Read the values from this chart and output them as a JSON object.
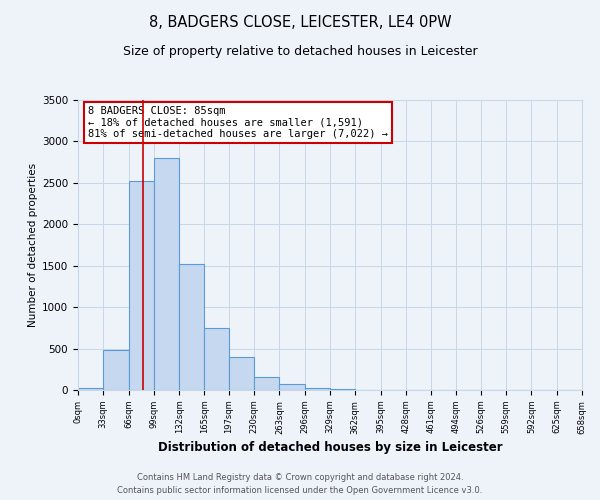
{
  "title": "8, BADGERS CLOSE, LEICESTER, LE4 0PW",
  "subtitle": "Size of property relative to detached houses in Leicester",
  "xlabel": "Distribution of detached houses by size in Leicester",
  "ylabel": "Number of detached properties",
  "bar_color": "#c5d8f0",
  "bar_edge_color": "#5b9bd5",
  "grid_color": "#c8d8e8",
  "background_color": "#eef3fa",
  "vline_value": 85,
  "vline_color": "#cc0000",
  "annotation_text": "8 BADGERS CLOSE: 85sqm\n← 18% of detached houses are smaller (1,591)\n81% of semi-detached houses are larger (7,022) →",
  "annotation_box_color": "#ffffff",
  "annotation_box_edge": "#cc0000",
  "bin_edges": [
    0,
    33,
    66,
    99,
    132,
    165,
    197,
    230,
    263,
    296,
    329,
    362,
    395,
    428,
    461,
    494,
    526,
    559,
    592,
    625,
    658
  ],
  "bar_heights": [
    20,
    480,
    2520,
    2800,
    1520,
    750,
    400,
    155,
    70,
    20,
    10,
    5,
    5,
    0,
    0,
    0,
    0,
    0,
    0,
    0
  ],
  "tick_labels": [
    "0sqm",
    "33sqm",
    "66sqm",
    "99sqm",
    "132sqm",
    "165sqm",
    "197sqm",
    "230sqm",
    "263sqm",
    "296sqm",
    "329sqm",
    "362sqm",
    "395sqm",
    "428sqm",
    "461sqm",
    "494sqm",
    "526sqm",
    "559sqm",
    "592sqm",
    "625sqm",
    "658sqm"
  ],
  "ylim": [
    0,
    3500
  ],
  "yticks": [
    0,
    500,
    1000,
    1500,
    2000,
    2500,
    3000,
    3500
  ],
  "footer_lines": [
    "Contains HM Land Registry data © Crown copyright and database right 2024.",
    "Contains public sector information licensed under the Open Government Licence v3.0."
  ]
}
